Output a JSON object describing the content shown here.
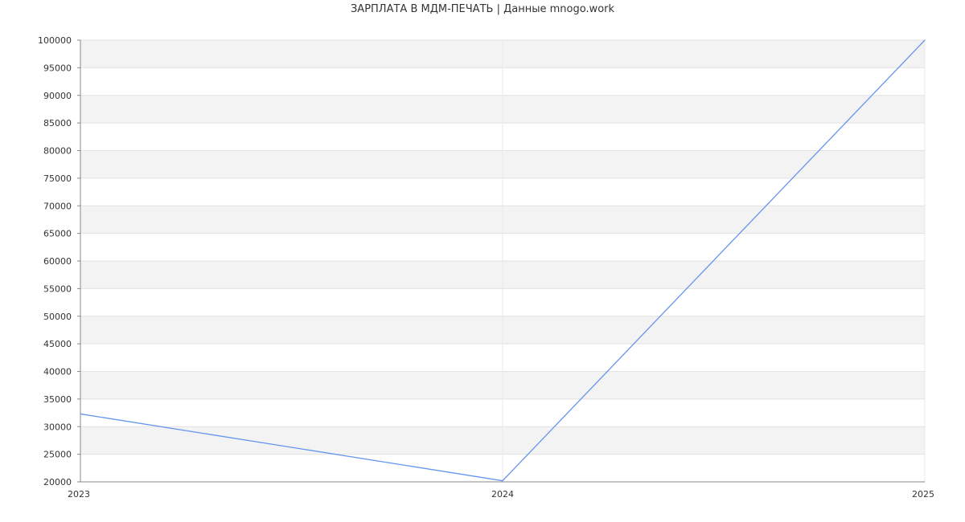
{
  "chart_data": {
    "type": "line",
    "title": "ЗАРПЛАТА В МДМ-ПЕЧАТЬ | Данные mnogo.work",
    "x": [
      "2023",
      "2024",
      "2025"
    ],
    "series": [
      {
        "values": [
          32300,
          20200,
          100000
        ],
        "color": "#6495ed"
      }
    ],
    "ylim": [
      20000,
      100000
    ],
    "yticks": [
      20000,
      25000,
      30000,
      35000,
      40000,
      45000,
      50000,
      55000,
      60000,
      65000,
      70000,
      75000,
      80000,
      85000,
      90000,
      95000,
      100000
    ],
    "grid": true,
    "band_color": "#f3f3f3"
  }
}
